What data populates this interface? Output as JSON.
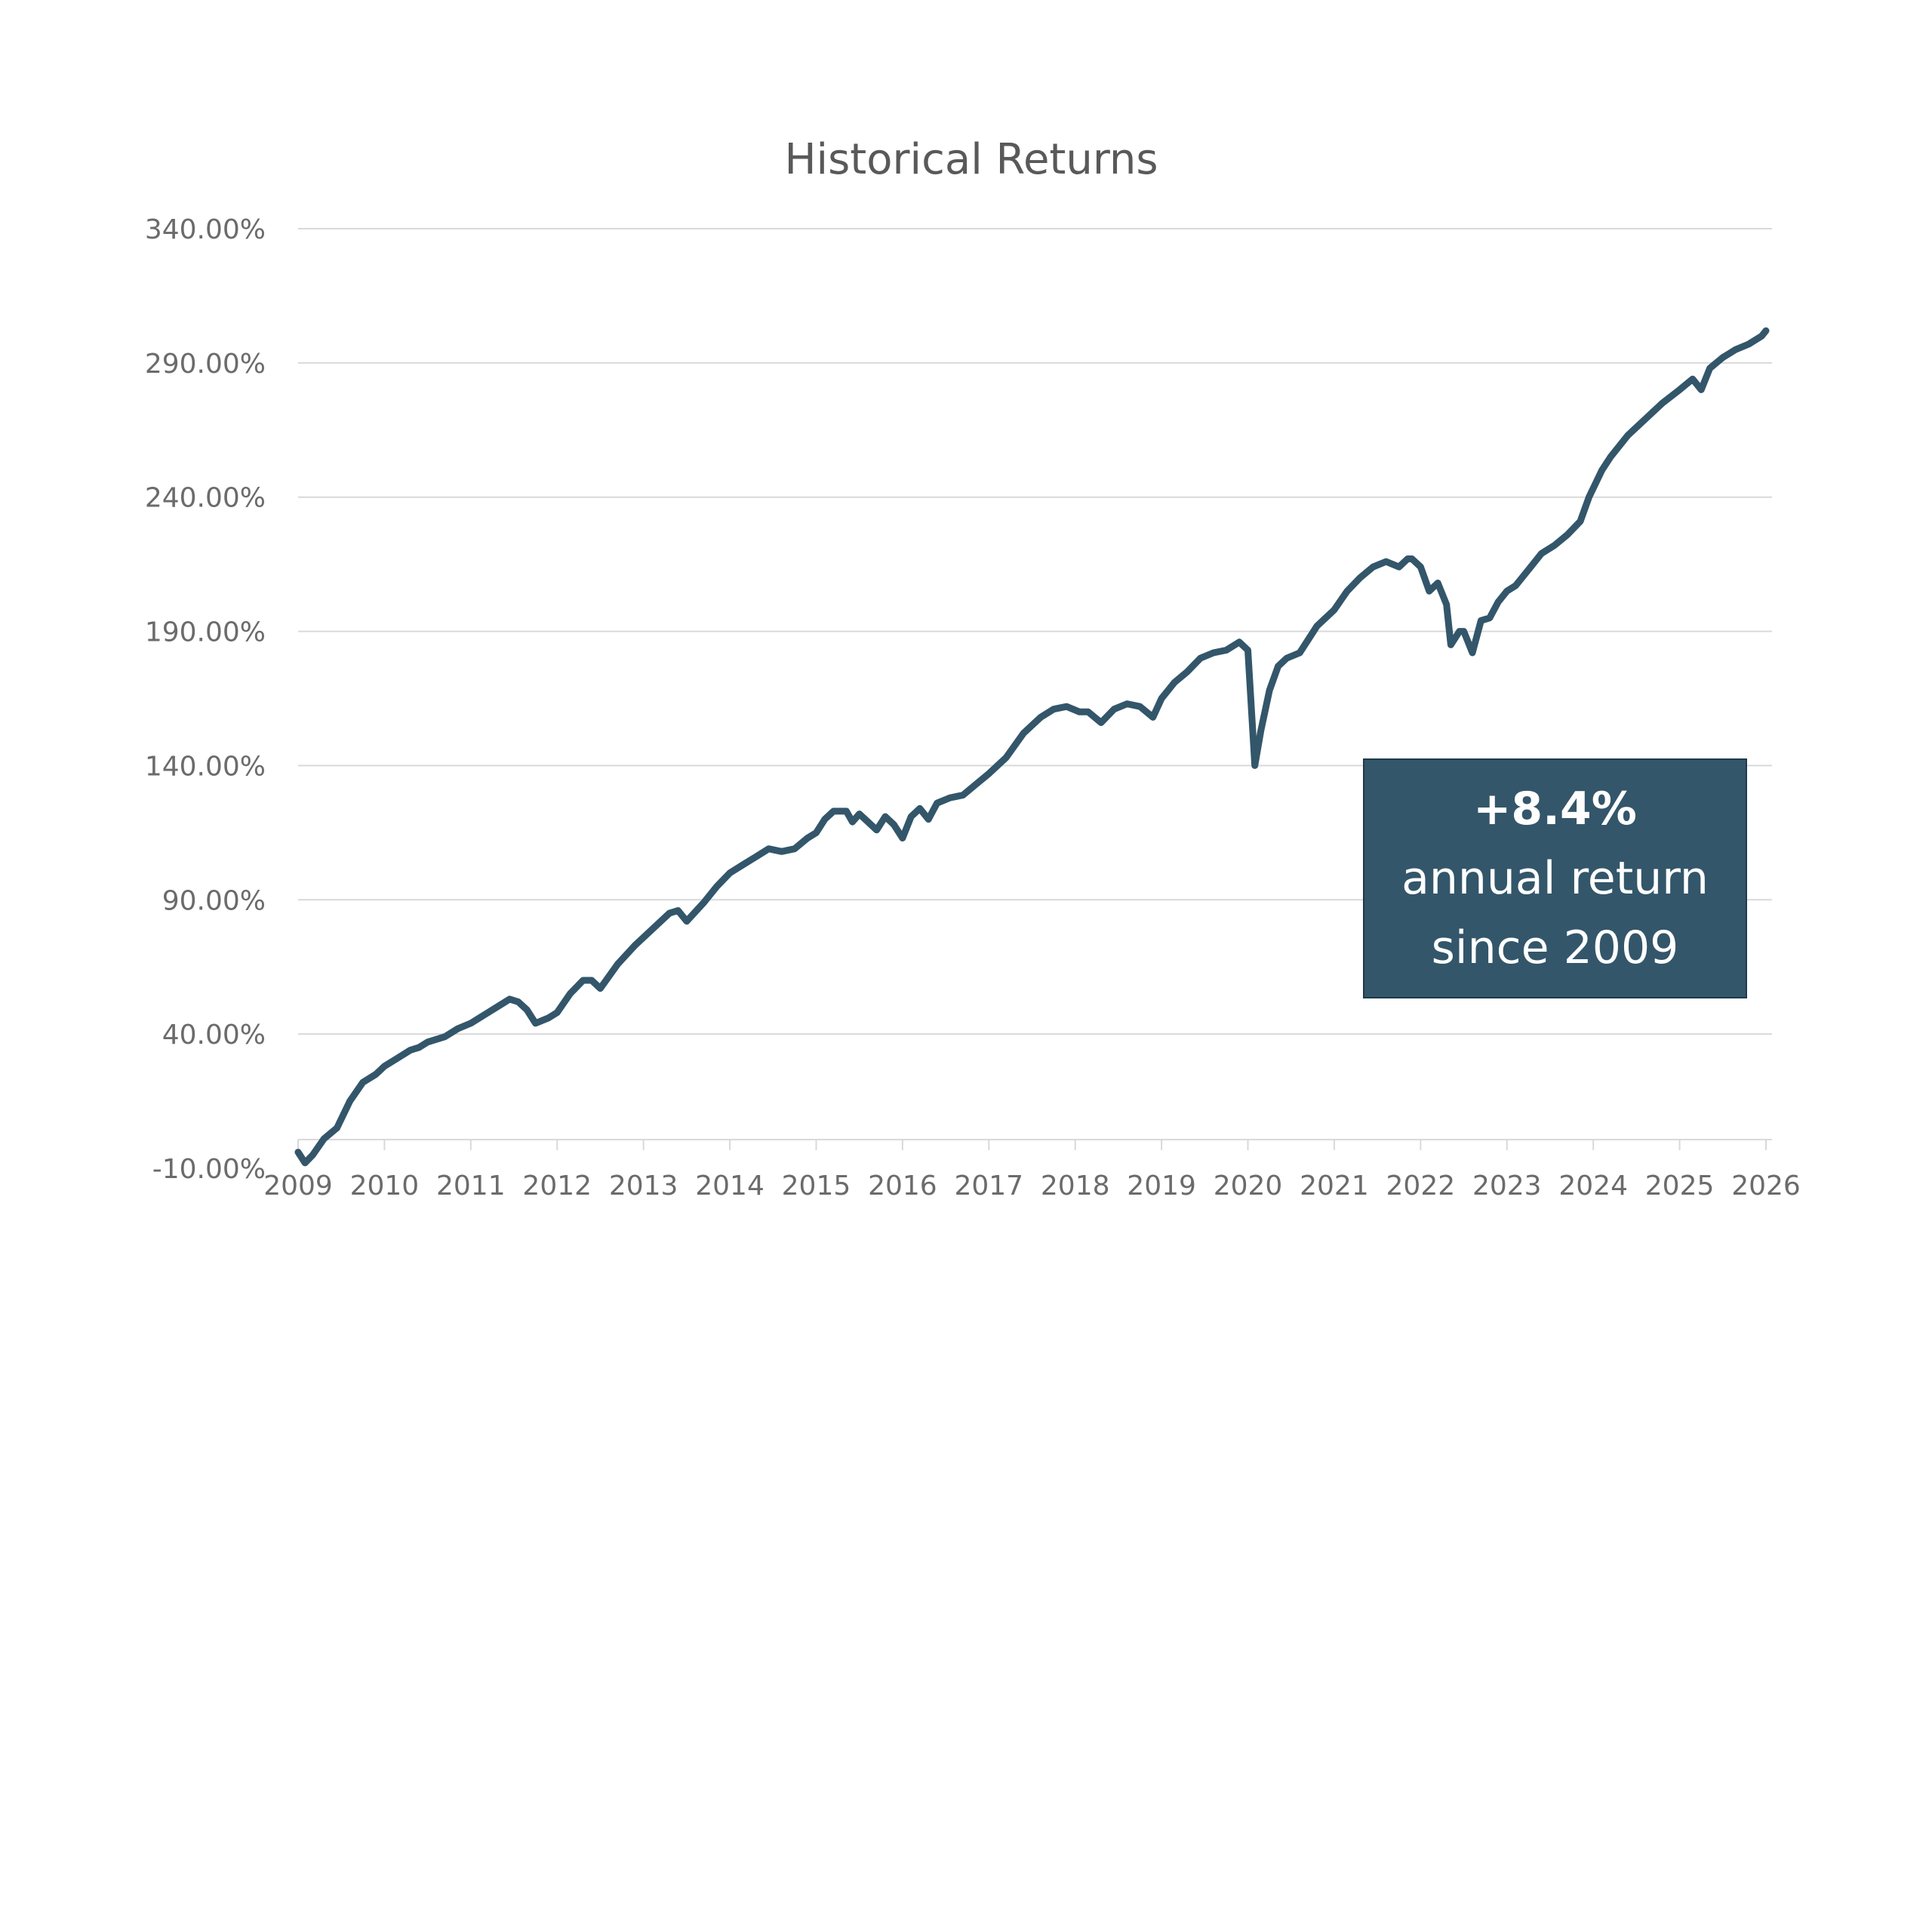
{
  "chart_data": {
    "type": "line",
    "title": "Historical Returns",
    "xlabel": "",
    "ylabel": "",
    "x_range": [
      2009.0,
      2026.0
    ],
    "ylim": [
      -10,
      340
    ],
    "y_ticks": [
      "340.00%",
      "290.00%",
      "240.00%",
      "190.00%",
      "140.00%",
      "90.00%",
      "40.00%",
      "-10.00%"
    ],
    "y_tick_values": [
      340,
      290,
      240,
      190,
      140,
      90,
      40,
      -10
    ],
    "x_ticks": [
      "2009",
      "2010",
      "2011",
      "2012",
      "2013",
      "2014",
      "2015",
      "2016",
      "2017",
      "2018",
      "2019",
      "2020",
      "2021",
      "2022",
      "2023",
      "2024",
      "2025",
      "2026"
    ],
    "grid": true,
    "legend": "none",
    "line_color": "#33566a",
    "series": [
      {
        "x": [
          2009.0,
          2009.08,
          2009.17,
          2009.3,
          2009.45,
          2009.6,
          2009.75,
          2009.9,
          2010.0,
          2010.15,
          2010.3,
          2010.4,
          2010.5,
          2010.7,
          2010.85,
          2011.0,
          2011.2,
          2011.35,
          2011.45,
          2011.55,
          2011.65,
          2011.75,
          2011.9,
          2012.0,
          2012.15,
          2012.3,
          2012.4,
          2012.5,
          2012.7,
          2012.9,
          2013.1,
          2013.3,
          2013.4,
          2013.5,
          2013.7,
          2013.85,
          2014.0,
          2014.15,
          2014.3,
          2014.45,
          2014.6,
          2014.75,
          2014.9,
          2015.0,
          2015.1,
          2015.2,
          2015.35,
          2015.42,
          2015.5,
          2015.6,
          2015.7,
          2015.8,
          2015.9,
          2016.0,
          2016.1,
          2016.2,
          2016.3,
          2016.4,
          2016.55,
          2016.7,
          2016.85,
          2017.0,
          2017.2,
          2017.4,
          2017.6,
          2017.75,
          2017.9,
          2018.05,
          2018.15,
          2018.3,
          2018.45,
          2018.6,
          2018.75,
          2018.9,
          2019.0,
          2019.15,
          2019.3,
          2019.45,
          2019.6,
          2019.75,
          2019.9,
          2020.0,
          2020.08,
          2020.15,
          2020.25,
          2020.35,
          2020.45,
          2020.6,
          2020.8,
          2020.9,
          2021.0,
          2021.15,
          2021.3,
          2021.45,
          2021.6,
          2021.75,
          2021.85,
          2021.9,
          2022.0,
          2022.1,
          2022.2,
          2022.3,
          2022.35,
          2022.45,
          2022.5,
          2022.6,
          2022.7,
          2022.8,
          2022.9,
          2023.0,
          2023.1,
          2023.25,
          2023.4,
          2023.55,
          2023.7,
          2023.85,
          2023.95,
          2024.1,
          2024.2,
          2024.4,
          2024.6,
          2024.8,
          2025.0,
          2025.15,
          2025.25,
          2025.35,
          2025.5,
          2025.65,
          2025.8,
          2025.95,
          2026.0
        ],
        "y": [
          -4,
          -8,
          -5,
          1,
          5,
          15,
          22,
          25,
          28,
          31,
          34,
          35,
          37,
          39,
          42,
          44,
          48,
          51,
          53,
          52,
          49,
          44,
          46,
          48,
          55,
          60,
          60,
          57,
          66,
          73,
          79,
          85,
          86,
          82,
          89,
          95,
          100,
          103,
          106,
          109,
          108,
          109,
          113,
          115,
          120,
          123,
          123,
          119,
          122,
          119,
          116,
          121,
          118,
          113,
          121,
          124,
          120,
          126,
          128,
          129,
          133,
          137,
          143,
          152,
          158,
          161,
          162,
          160,
          160,
          156,
          161,
          163,
          162,
          158,
          165,
          171,
          175,
          180,
          182,
          183,
          186,
          183,
          140,
          153,
          168,
          177,
          180,
          182,
          192,
          195,
          198,
          205,
          210,
          214,
          216,
          214,
          217,
          217,
          214,
          205,
          208,
          200,
          185,
          190,
          190,
          182,
          194,
          195,
          201,
          205,
          207,
          213,
          219,
          222,
          226,
          231,
          240,
          250,
          255,
          263,
          269,
          275,
          280,
          284,
          280,
          288,
          292,
          295,
          297,
          300,
          302
        ]
      }
    ],
    "annotation": {
      "value": "+8.4%",
      "line1": "annual return",
      "line2": "since 2009"
    }
  }
}
